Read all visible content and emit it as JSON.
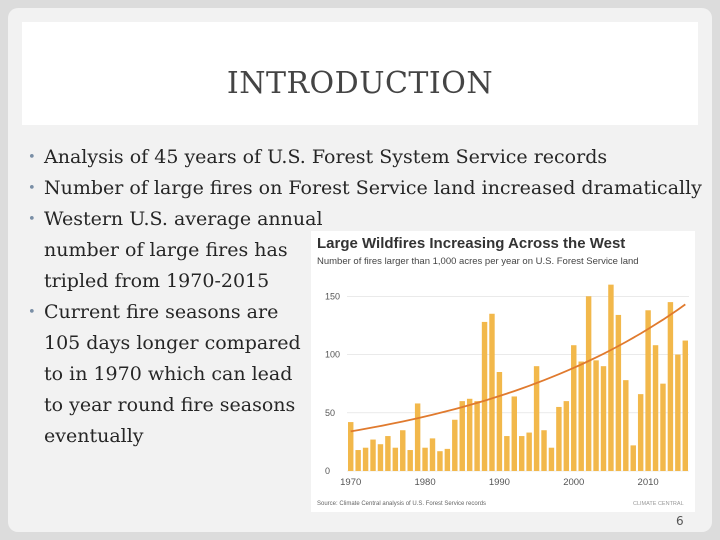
{
  "slide": {
    "title": "INTRODUCTION",
    "bullets": [
      "Analysis of 45 years of U.S. Forest System Service records",
      "Number of large fires on Forest Service land increased dramatically",
      "Western U.S. average annual number of large fires has tripled from 1970-2015",
      "Current fire seasons are 105 days longer compared to in 1970 which can lead to year round fire seasons eventually"
    ],
    "page_number": "6"
  },
  "chart_data": {
    "type": "bar",
    "title": "Large Wildfires Increasing Across the West",
    "subtitle": "Number of fires larger than 1,000 acres per year on U.S. Forest Service land",
    "source": "Source: Climate Central analysis of U.S. Forest Service records",
    "logo": "CLIMATE CENTRAL",
    "x_tick_labels": [
      "1970",
      "1980",
      "1990",
      "2000",
      "2010"
    ],
    "y_tick_labels": [
      "0",
      "50",
      "100",
      "150"
    ],
    "ylim": [
      0,
      170
    ],
    "years": [
      1970,
      1971,
      1972,
      1973,
      1974,
      1975,
      1976,
      1977,
      1978,
      1979,
      1980,
      1981,
      1982,
      1983,
      1984,
      1985,
      1986,
      1987,
      1988,
      1989,
      1990,
      1991,
      1992,
      1993,
      1994,
      1995,
      1996,
      1997,
      1998,
      1999,
      2000,
      2001,
      2002,
      2003,
      2004,
      2005,
      2006,
      2007,
      2008,
      2009,
      2010,
      2011,
      2012,
      2013,
      2014,
      2015
    ],
    "values": [
      42,
      18,
      20,
      27,
      23,
      30,
      20,
      35,
      18,
      58,
      20,
      28,
      17,
      19,
      44,
      60,
      62,
      60,
      128,
      135,
      85,
      30,
      64,
      30,
      33,
      90,
      35,
      20,
      55,
      60,
      108,
      94,
      150,
      95,
      90,
      160,
      134,
      78,
      22,
      66,
      138,
      108,
      75,
      145,
      100,
      112
    ],
    "trend": {
      "start": 34,
      "end": 143
    },
    "colors": {
      "bar": "#f2b84b",
      "trend": "#e07a2e",
      "grid": "#dddddd",
      "title": "#333333"
    }
  }
}
